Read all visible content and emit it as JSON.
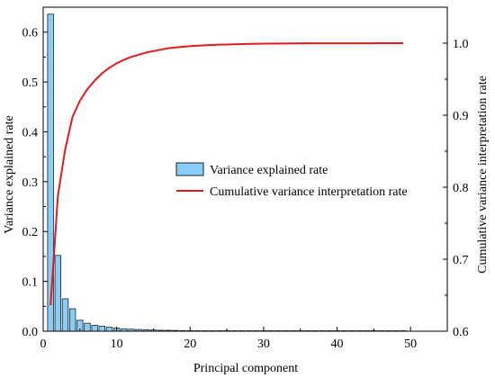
{
  "chart_data": {
    "type": "bar",
    "xlabel": "Principal component",
    "ylabel": "Variance explained rate",
    "y2label": "Cumulative variance interpretation rate",
    "xlim": [
      0,
      55
    ],
    "ylim": [
      0,
      0.65
    ],
    "y2lim": [
      0.6,
      1.05
    ],
    "xticks": [
      "0",
      "10",
      "20",
      "30",
      "40",
      "50"
    ],
    "yticks": [
      "0.0",
      "0.1",
      "0.2",
      "0.3",
      "0.4",
      "0.5",
      "0.6"
    ],
    "y2ticks": [
      "0.6",
      "0.7",
      "0.8",
      "0.9",
      "1.0"
    ],
    "legend_position": "center-right",
    "colors": {
      "bar_fill": "#87CEFA",
      "bar_stroke": "#1f1f1f",
      "line": "#e41a1c"
    },
    "series": [
      {
        "name": "Variance explained rate",
        "type": "bar",
        "axis": "left",
        "x": [
          1,
          2,
          3,
          4,
          5,
          6,
          7,
          8,
          9,
          10,
          11,
          12,
          13,
          14,
          15,
          16,
          17,
          18,
          19,
          20,
          21,
          22,
          23,
          24,
          25,
          26,
          27,
          28,
          29,
          30,
          31,
          32,
          33,
          34,
          35,
          36,
          37,
          38,
          39,
          40,
          41,
          42,
          43,
          44,
          45,
          46,
          47,
          48,
          49
        ],
        "values": [
          0.636,
          0.152,
          0.065,
          0.045,
          0.022,
          0.016,
          0.012,
          0.01,
          0.008,
          0.006,
          0.005,
          0.004,
          0.0035,
          0.003,
          0.0025,
          0.002,
          0.0018,
          0.0015,
          0.0012,
          0.001,
          0.0009,
          0.0008,
          0.0007,
          0.0006,
          0.0005,
          0.0004,
          0.0004,
          0.0003,
          0.0003,
          0.0002,
          0.0002,
          0.0002,
          0.0001,
          0.0001,
          0.0001,
          0.0001,
          0.0001,
          0.0001,
          5e-05,
          5e-05,
          5e-05,
          5e-05,
          5e-05,
          3e-05,
          3e-05,
          3e-05,
          2e-05,
          2e-05,
          2e-05
        ]
      },
      {
        "name": "Cumulative variance interpretation rate",
        "type": "line",
        "axis": "right",
        "x": [
          1,
          2,
          3,
          4,
          5,
          6,
          7,
          8,
          9,
          10,
          11,
          12,
          13,
          14,
          15,
          16,
          17,
          18,
          19,
          20,
          22,
          24,
          26,
          28,
          30,
          32,
          34,
          36,
          38,
          40,
          42,
          44,
          46,
          48,
          49
        ],
        "values": [
          0.636,
          0.788,
          0.853,
          0.898,
          0.92,
          0.936,
          0.948,
          0.958,
          0.966,
          0.972,
          0.977,
          0.981,
          0.984,
          0.987,
          0.989,
          0.991,
          0.993,
          0.994,
          0.995,
          0.996,
          0.997,
          0.998,
          0.9985,
          0.999,
          0.9993,
          0.9995,
          0.9997,
          0.9998,
          0.9998,
          0.9999,
          0.9999,
          0.9999,
          1.0,
          1.0,
          1.0
        ]
      }
    ]
  }
}
